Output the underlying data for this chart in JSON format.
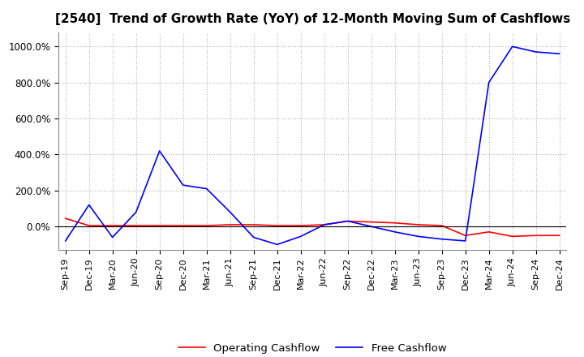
{
  "title": "[2540]  Trend of Growth Rate (YoY) of 12-Month Moving Sum of Cashflows",
  "title_fontsize": 11,
  "ylim": [
    -130,
    1080
  ],
  "yticks": [
    0.0,
    200.0,
    400.0,
    600.0,
    800.0,
    1000.0
  ],
  "ytick_labels": [
    "0.0%",
    "200.0%",
    "400.0%",
    "600.0%",
    "800.0%",
    "1000.0%"
  ],
  "background_color": "#ffffff",
  "grid_color": "#aaaaaa",
  "legend_labels": [
    "Operating Cashflow",
    "Free Cashflow"
  ],
  "legend_colors": [
    "#ff0000",
    "#0000ff"
  ],
  "x_labels": [
    "Sep-19",
    "Dec-19",
    "Mar-20",
    "Jun-20",
    "Sep-20",
    "Dec-20",
    "Mar-21",
    "Jun-21",
    "Sep-21",
    "Dec-21",
    "Mar-22",
    "Jun-22",
    "Sep-22",
    "Dec-22",
    "Mar-23",
    "Jun-23",
    "Sep-23",
    "Dec-23",
    "Mar-24",
    "Jun-24",
    "Sep-24",
    "Dec-24"
  ],
  "operating_cashflow": [
    45,
    5,
    5,
    5,
    5,
    5,
    5,
    10,
    10,
    5,
    5,
    10,
    30,
    25,
    20,
    10,
    5,
    -50,
    -30,
    -55,
    -50,
    -50
  ],
  "free_cashflow": [
    -80,
    120,
    -60,
    80,
    420,
    230,
    210,
    80,
    -60,
    -100,
    -55,
    10,
    30,
    0,
    -30,
    -55,
    -70,
    -80,
    800,
    1000,
    970,
    960
  ]
}
